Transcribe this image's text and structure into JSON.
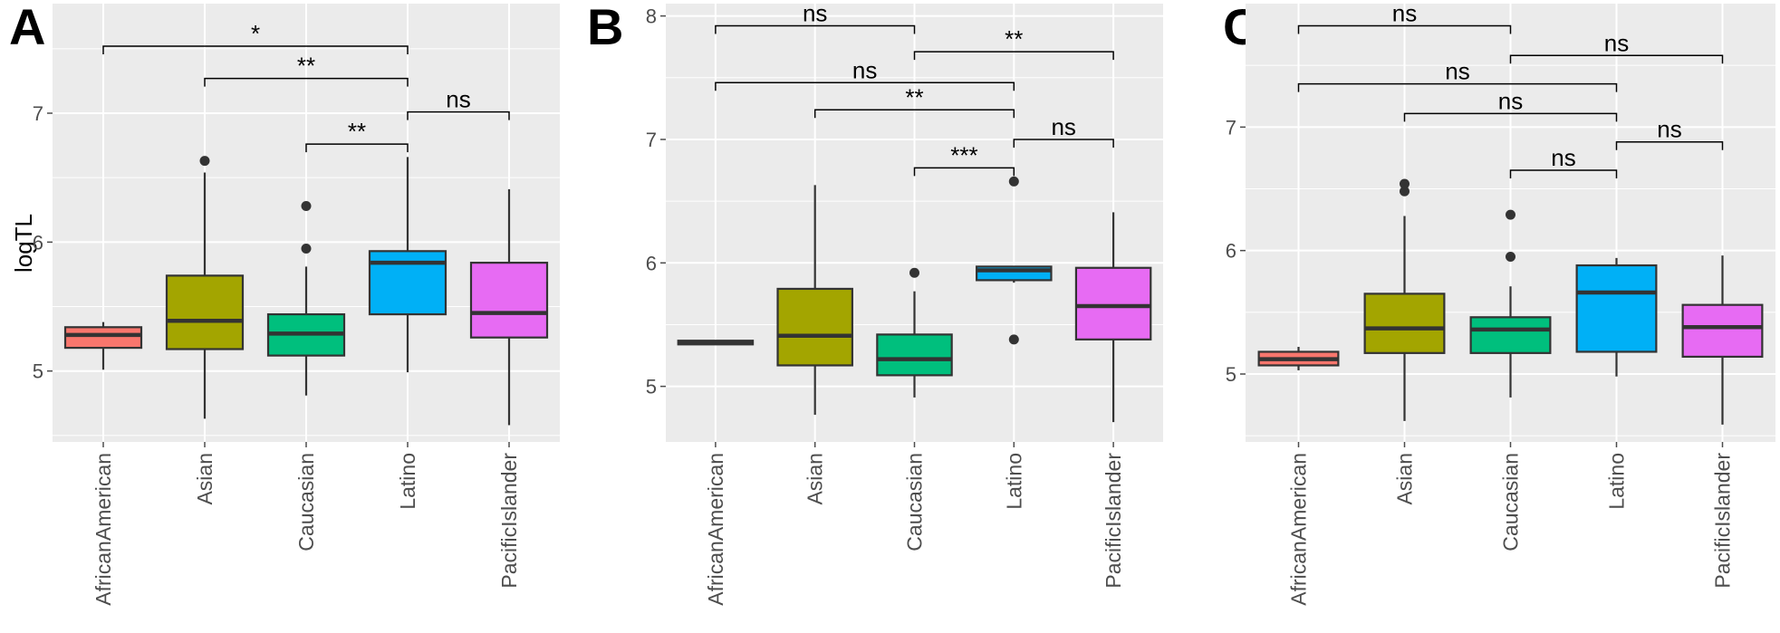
{
  "figure": {
    "colors": {
      "AfricanAmerican": "#F8766D",
      "Asian": "#A3A500",
      "Caucasian": "#00BF7D",
      "Latino": "#00B0F6",
      "PacificIslander": "#E76BF3",
      "panel_bg": "#EBEBEB",
      "grid": "#FFFFFF",
      "box_line": "#333333",
      "text": "#4D4D4D"
    }
  },
  "chart_data": [
    {
      "type": "box",
      "panel_label": "A",
      "ylabel": "logTL",
      "categories": [
        "AfricanAmerican",
        "Asian",
        "Caucasian",
        "Latino",
        "PacificIslander"
      ],
      "ylim": [
        4.45,
        7.85
      ],
      "yticks": [
        5,
        6,
        7
      ],
      "ytick_labels": [
        "5",
        "6",
        "7"
      ],
      "boxes": [
        {
          "category": "AfricanAmerican",
          "whisker_low": 5.01,
          "q1": 5.18,
          "median": 5.28,
          "q3": 5.34,
          "whisker_high": 5.38,
          "outliers": []
        },
        {
          "category": "Asian",
          "whisker_low": 4.63,
          "q1": 5.17,
          "median": 5.39,
          "q3": 5.74,
          "whisker_high": 6.54,
          "outliers": [
            6.63
          ]
        },
        {
          "category": "Caucasian",
          "whisker_low": 4.81,
          "q1": 5.12,
          "median": 5.29,
          "q3": 5.44,
          "whisker_high": 5.81,
          "outliers": [
            5.95,
            6.28
          ]
        },
        {
          "category": "Latino",
          "whisker_low": 4.99,
          "q1": 5.44,
          "median": 5.84,
          "q3": 5.93,
          "whisker_high": 6.66,
          "outliers": []
        },
        {
          "category": "PacificIslander",
          "whisker_low": 4.58,
          "q1": 5.26,
          "median": 5.45,
          "q3": 5.84,
          "whisker_high": 6.41,
          "outliers": []
        }
      ],
      "comparisons": [
        {
          "from": "AfricanAmerican",
          "to": "Latino",
          "y": 7.52,
          "label": "*"
        },
        {
          "from": "Asian",
          "to": "Latino",
          "y": 7.27,
          "label": "**"
        },
        {
          "from": "Latino",
          "to": "PacificIslander",
          "y": 7.01,
          "label": "ns"
        },
        {
          "from": "Caucasian",
          "to": "Latino",
          "y": 6.76,
          "label": "**"
        }
      ]
    },
    {
      "type": "box",
      "panel_label": "B",
      "ylabel": "",
      "categories": [
        "AfricanAmerican",
        "Asian",
        "Caucasian",
        "Latino",
        "PacificIslander"
      ],
      "ylim": [
        4.55,
        8.1
      ],
      "yticks": [
        5,
        6,
        7,
        8
      ],
      "ytick_labels": [
        "5",
        "6",
        "7",
        "8"
      ],
      "boxes": [
        {
          "category": "AfricanAmerican",
          "whisker_low": 5.34,
          "q1": 5.34,
          "median": 5.35,
          "q3": 5.37,
          "whisker_high": 5.37,
          "outliers": []
        },
        {
          "category": "Asian",
          "whisker_low": 4.77,
          "q1": 5.17,
          "median": 5.41,
          "q3": 5.79,
          "whisker_high": 6.63,
          "outliers": []
        },
        {
          "category": "Caucasian",
          "whisker_low": 4.91,
          "q1": 5.09,
          "median": 5.22,
          "q3": 5.42,
          "whisker_high": 5.77,
          "outliers": [
            5.92
          ]
        },
        {
          "category": "Latino",
          "whisker_low": 5.84,
          "q1": 5.86,
          "median": 5.94,
          "q3": 5.97,
          "whisker_high": 5.97,
          "outliers": [
            5.38,
            6.66
          ]
        },
        {
          "category": "PacificIslander",
          "whisker_low": 4.71,
          "q1": 5.38,
          "median": 5.65,
          "q3": 5.96,
          "whisker_high": 6.41,
          "outliers": []
        }
      ],
      "comparisons": [
        {
          "from": "AfricanAmerican",
          "to": "Caucasian",
          "y": 7.92,
          "label": "ns"
        },
        {
          "from": "Caucasian",
          "to": "PacificIslander",
          "y": 7.71,
          "label": "**"
        },
        {
          "from": "AfricanAmerican",
          "to": "Latino",
          "y": 7.46,
          "label": "ns"
        },
        {
          "from": "Asian",
          "to": "Latino",
          "y": 7.24,
          "label": "**"
        },
        {
          "from": "Latino",
          "to": "PacificIslander",
          "y": 7.0,
          "label": "ns"
        },
        {
          "from": "Caucasian",
          "to": "Latino",
          "y": 6.77,
          "label": "***"
        }
      ]
    },
    {
      "type": "box",
      "panel_label": "C",
      "ylabel": "",
      "categories": [
        "AfricanAmerican",
        "Asian",
        "Caucasian",
        "Latino",
        "PacificIslander"
      ],
      "ylim": [
        4.45,
        8.0
      ],
      "yticks": [
        5,
        6,
        7
      ],
      "ytick_labels": [
        "5",
        "6",
        "7"
      ],
      "boxes": [
        {
          "category": "AfricanAmerican",
          "whisker_low": 5.03,
          "q1": 5.07,
          "median": 5.12,
          "q3": 5.18,
          "whisker_high": 5.22,
          "outliers": []
        },
        {
          "category": "Asian",
          "whisker_low": 4.62,
          "q1": 5.17,
          "median": 5.37,
          "q3": 5.65,
          "whisker_high": 6.28,
          "outliers": [
            6.48,
            6.54
          ]
        },
        {
          "category": "Caucasian",
          "whisker_low": 4.81,
          "q1": 5.17,
          "median": 5.36,
          "q3": 5.46,
          "whisker_high": 5.71,
          "outliers": [
            5.95,
            6.29
          ]
        },
        {
          "category": "Latino",
          "whisker_low": 4.98,
          "q1": 5.18,
          "median": 5.66,
          "q3": 5.88,
          "whisker_high": 5.94,
          "outliers": []
        },
        {
          "category": "PacificIslander",
          "whisker_low": 4.59,
          "q1": 5.14,
          "median": 5.38,
          "q3": 5.56,
          "whisker_high": 5.96,
          "outliers": []
        }
      ],
      "comparisons": [
        {
          "from": "AfricanAmerican",
          "to": "Caucasian",
          "y": 7.82,
          "label": "ns"
        },
        {
          "from": "Caucasian",
          "to": "PacificIslander",
          "y": 7.58,
          "label": "ns"
        },
        {
          "from": "AfricanAmerican",
          "to": "Latino",
          "y": 7.35,
          "label": "ns"
        },
        {
          "from": "Asian",
          "to": "Latino",
          "y": 7.11,
          "label": "ns"
        },
        {
          "from": "Latino",
          "to": "PacificIslander",
          "y": 6.88,
          "label": "ns"
        },
        {
          "from": "Caucasian",
          "to": "Latino",
          "y": 6.65,
          "label": "ns"
        }
      ]
    }
  ]
}
